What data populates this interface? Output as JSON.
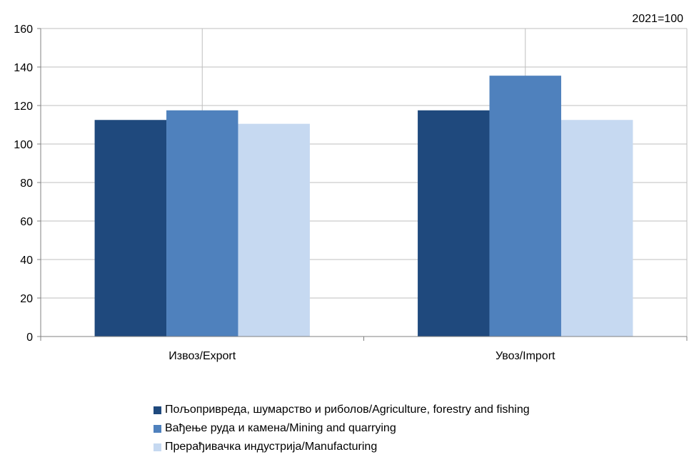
{
  "chart_data": {
    "type": "bar",
    "note": "2021=100",
    "categories": [
      "Извоз/Export",
      "Увоз/Import"
    ],
    "series": [
      {
        "name": "Пољопривреда, шумарство и риболов/Agriculture, forestry and fishing",
        "color": "#1F497D",
        "values": [
          112.5,
          117.5
        ]
      },
      {
        "name": "Вађење руда и камена/Mining and quarrying",
        "color": "#4F81BD",
        "values": [
          117.5,
          135.5
        ]
      },
      {
        "name": "Прерађивачка индустрија/Manufacturing",
        "color": "#C6D9F1",
        "values": [
          110.5,
          112.5
        ]
      }
    ],
    "ylim": [
      0,
      160
    ],
    "yticks": [
      0,
      20,
      40,
      60,
      80,
      100,
      120,
      140,
      160
    ],
    "grid": true,
    "legend_position": "bottom"
  }
}
